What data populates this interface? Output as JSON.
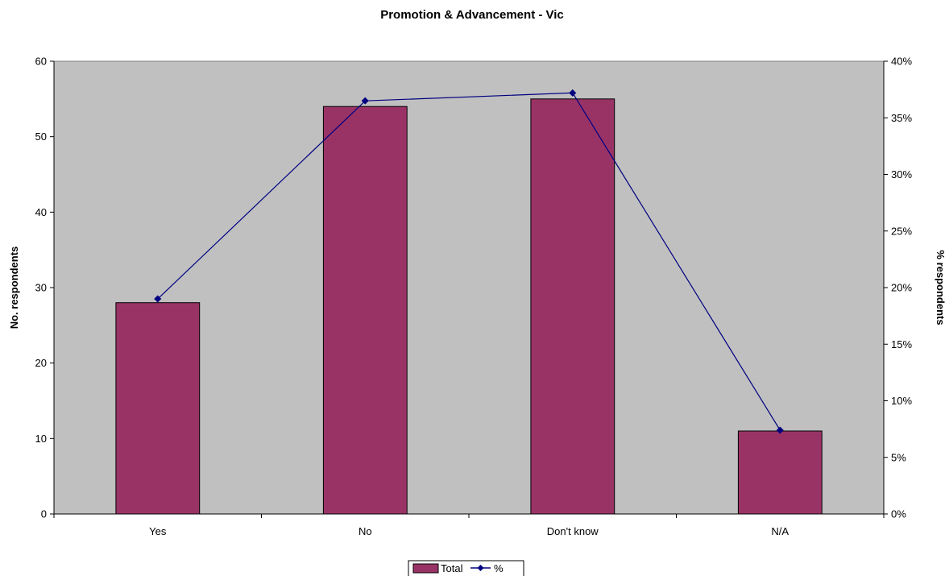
{
  "chart_data": {
    "type": "bar",
    "title": "Promotion & Advancement - Vic",
    "categories": [
      "Yes",
      "No",
      "Don't know",
      "N/A"
    ],
    "series": [
      {
        "name": "Total",
        "kind": "bar",
        "axis": "left",
        "color": "#993366",
        "values": [
          28,
          54,
          55,
          11
        ]
      },
      {
        "name": "%",
        "kind": "line",
        "axis": "right",
        "color": "#000080",
        "marker": "diamond",
        "values": [
          0.19,
          0.365,
          0.372,
          0.074
        ]
      }
    ],
    "ylabel": "No. respondents",
    "ylim": [
      0,
      60
    ],
    "yticks": [
      0,
      10,
      20,
      30,
      40,
      50,
      60
    ],
    "y2label": "% respondents",
    "y2lim": [
      0,
      0.4
    ],
    "y2ticks": [
      "0%",
      "5%",
      "10%",
      "15%",
      "20%",
      "25%",
      "30%",
      "35%",
      "40%"
    ],
    "plot_background": "#c0c0c0",
    "grid": false,
    "legend": {
      "position": "bottom",
      "entries": [
        "Total",
        "%"
      ]
    }
  }
}
